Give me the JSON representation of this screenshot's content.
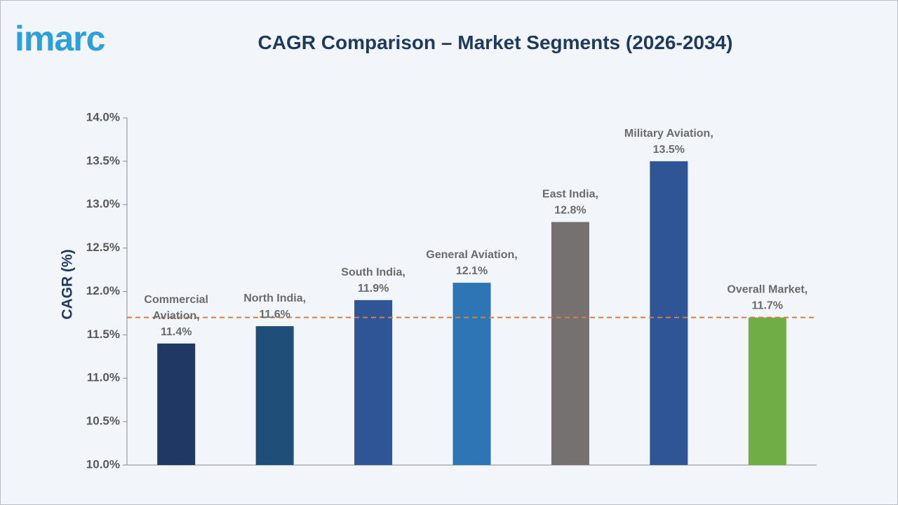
{
  "brand": {
    "logo_text": "imarc",
    "logo_color": "#2ca0db"
  },
  "chart_data": {
    "type": "bar",
    "title": "CAGR Comparison – Market Segments (2026-2034)",
    "xlabel": "",
    "ylabel": "CAGR (%)",
    "ylim": [
      10.0,
      14.0
    ],
    "yticks": [
      "10.0%",
      "10.5%",
      "11.0%",
      "11.5%",
      "12.0%",
      "12.5%",
      "13.0%",
      "13.5%",
      "14.0%"
    ],
    "categories": [
      "Commercial Aviation",
      "North India",
      "South India",
      "General Aviation",
      "East India",
      "Military Aviation",
      "Overall Market"
    ],
    "values": [
      11.4,
      11.6,
      11.9,
      12.1,
      12.8,
      13.5,
      11.7
    ],
    "data_labels": [
      [
        "Commercial",
        "Aviation,",
        "11.4%"
      ],
      [
        "North India,",
        "11.6%"
      ],
      [
        "South India,",
        "11.9%"
      ],
      [
        "General Aviation,",
        "12.1%"
      ],
      [
        "East India,",
        "12.8%"
      ],
      [
        "Military Aviation,",
        "13.5%"
      ],
      [
        "Overall Market,",
        "11.7%"
      ]
    ],
    "colors": [
      "#1f3864",
      "#1f4e79",
      "#2f5597",
      "#2e75b6",
      "#767171",
      "#2f5597",
      "#70ad47"
    ],
    "reference_line": {
      "value": 11.7,
      "color": "#e07b39",
      "style": "dashed"
    },
    "grid": false,
    "legend": "none"
  }
}
